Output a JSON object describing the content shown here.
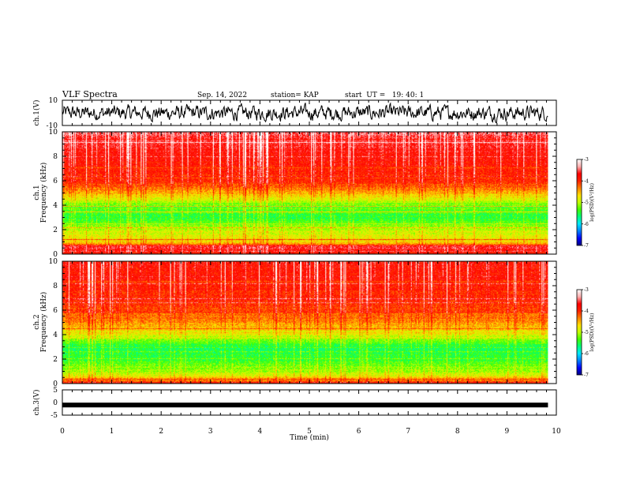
{
  "header": {
    "title": "VLF Spectra",
    "date": "Sep. 14, 2022",
    "station": "station= KAP",
    "start": "start  UT =   19: 40: 1"
  },
  "chart_data": {
    "type": "heatmap",
    "xlabel": "Time  (min)",
    "x_ticks": [
      "0",
      "1",
      "2",
      "3",
      "4",
      "5",
      "6",
      "7",
      "8",
      "9",
      "10"
    ],
    "xlim": [
      0,
      10
    ],
    "data_end_min": 9.83,
    "panels": [
      {
        "id": "ch1_waveform",
        "type": "line",
        "ylabel": "ch.1(V)",
        "ylim": [
          -10,
          10
        ],
        "y_ticks": [
          "10",
          "-10"
        ],
        "amplitude_range": [
          -5,
          5
        ]
      },
      {
        "id": "ch1_spectrogram",
        "type": "heatmap",
        "ylabel": "ch.1\nFrequency  (kHz)",
        "ylabel_lines": [
          "ch.1",
          "Frequency  (kHz)"
        ],
        "ylim": [
          0,
          10
        ],
        "y_ticks": [
          "0",
          "2",
          "4",
          "6",
          "8",
          "10"
        ],
        "band_profile_log_psd": [
          {
            "f_khz": 0.0,
            "log_psd": -4.0
          },
          {
            "f_khz": 0.5,
            "log_psd": -3.6
          },
          {
            "f_khz": 1.0,
            "log_psd": -4.7
          },
          {
            "f_khz": 2.0,
            "log_psd": -5.0
          },
          {
            "f_khz": 3.0,
            "log_psd": -5.5
          },
          {
            "f_khz": 4.0,
            "log_psd": -5.2
          },
          {
            "f_khz": 5.0,
            "log_psd": -4.5
          },
          {
            "f_khz": 6.0,
            "log_psd": -4.0
          },
          {
            "f_khz": 8.0,
            "log_psd": -3.8
          },
          {
            "f_khz": 10.0,
            "log_psd": -3.5
          }
        ]
      },
      {
        "id": "ch2_spectrogram",
        "type": "heatmap",
        "ylabel": "ch.2\nFrequency  (kHz)",
        "ylabel_lines": [
          "ch.2",
          "Frequency  (kHz)"
        ],
        "ylim": [
          0,
          10
        ],
        "y_ticks": [
          "0",
          "2",
          "4",
          "6",
          "8",
          "10"
        ],
        "band_profile_log_psd": [
          {
            "f_khz": 0.0,
            "log_psd": -4.0
          },
          {
            "f_khz": 0.5,
            "log_psd": -4.6
          },
          {
            "f_khz": 1.0,
            "log_psd": -5.1
          },
          {
            "f_khz": 2.0,
            "log_psd": -5.4
          },
          {
            "f_khz": 3.0,
            "log_psd": -5.6
          },
          {
            "f_khz": 4.0,
            "log_psd": -4.8
          },
          {
            "f_khz": 5.0,
            "log_psd": -4.4
          },
          {
            "f_khz": 6.0,
            "log_psd": -4.1
          },
          {
            "f_khz": 8.0,
            "log_psd": -3.9
          },
          {
            "f_khz": 10.0,
            "log_psd": -3.8
          }
        ]
      },
      {
        "id": "ch3_waveform",
        "type": "line",
        "ylabel": "ch.3(V)",
        "ylim": [
          -5,
          5
        ],
        "y_ticks": [
          "5",
          "0",
          "-5"
        ],
        "constant_value": -1
      }
    ],
    "colorbar": {
      "label": "log(PSD)(V²/Hz)",
      "range": [
        -7,
        -3
      ],
      "ticks": [
        "-3",
        "-4",
        "-5",
        "-6",
        "-7"
      ],
      "colormap": [
        "#00007f",
        "#0000ff",
        "#0080ff",
        "#00e5ff",
        "#00ff80",
        "#40ff00",
        "#c0ff00",
        "#ffe000",
        "#ff8000",
        "#ff2000",
        "#ff0000",
        "#ffb0b0",
        "#ffffff"
      ]
    }
  }
}
